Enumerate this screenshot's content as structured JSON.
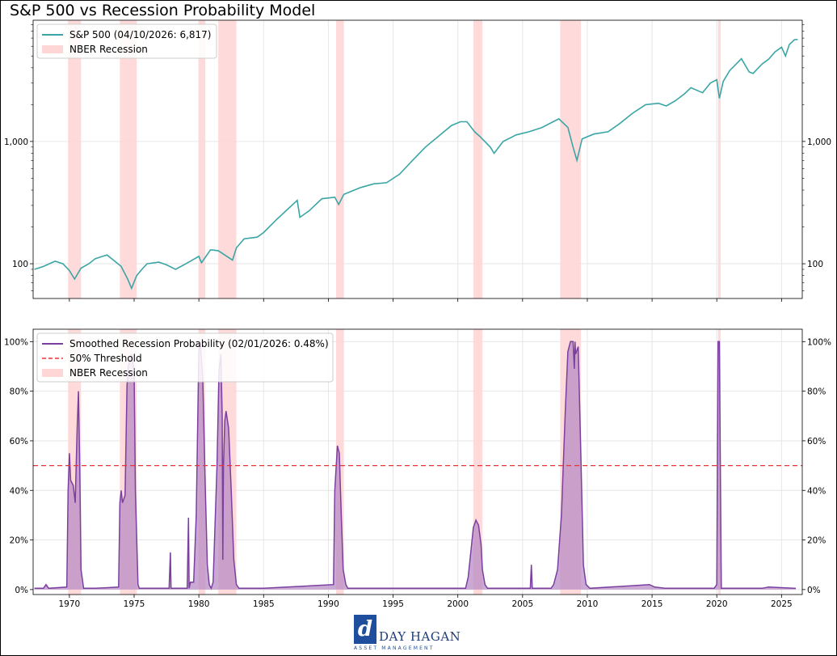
{
  "title": "S&P 500 vs Recession Probability Model",
  "brand": {
    "mark": "d",
    "name": "DAY HAGAN",
    "subtitle": "ASSET MANAGEMENT"
  },
  "colors": {
    "sp500": "#3ba5a5",
    "prob": "#7b3fa0",
    "prob_fill": "#b88cc6",
    "threshold": "#e8343a",
    "recession": "#ffd6d6"
  },
  "chart_data": [
    {
      "type": "line",
      "legend_position": "top-left",
      "grid": true,
      "y_scale": "log",
      "xlim": [
        1967.2,
        2026.6
      ],
      "ylim": [
        52,
        9800
      ],
      "y_ticks": [
        100,
        1000
      ],
      "y_tick_labels": [
        "100",
        "1,000"
      ],
      "legend": [
        "S&P 500 (04/10/2026: 6,817)",
        "NBER Recession"
      ],
      "recessions": [
        [
          1969.9,
          1970.9
        ],
        [
          1973.9,
          1975.2
        ],
        [
          1980.0,
          1980.5
        ],
        [
          1981.5,
          1982.9
        ],
        [
          1990.6,
          1991.2
        ],
        [
          2001.2,
          2001.9
        ],
        [
          2007.9,
          2009.5
        ],
        [
          2020.1,
          2020.3
        ]
      ],
      "series": [
        {
          "name": "S&P 500 (04/10/2026: 6,817)",
          "x": [
            1967.3,
            1968.0,
            1968.9,
            1969.5,
            1970.0,
            1970.4,
            1970.9,
            1971.5,
            1972.0,
            1972.9,
            1973.5,
            1974.0,
            1974.5,
            1974.8,
            1975.2,
            1975.6,
            1976.0,
            1976.9,
            1977.5,
            1978.2,
            1979.0,
            1980.0,
            1980.2,
            1980.9,
            1981.5,
            1982.6,
            1982.9,
            1983.5,
            1984.5,
            1985.0,
            1986.0,
            1987.6,
            1987.8,
            1988.5,
            1989.5,
            1990.5,
            1990.8,
            1991.2,
            1992.5,
            1993.5,
            1994.5,
            1995.5,
            1996.5,
            1997.5,
            1998.5,
            1999.5,
            2000.2,
            2000.7,
            2001.3,
            2001.7,
            2002.5,
            2002.8,
            2003.5,
            2004.5,
            2005.5,
            2006.5,
            2007.8,
            2008.5,
            2008.9,
            2009.2,
            2009.6,
            2010.5,
            2011.6,
            2012.5,
            2013.5,
            2014.5,
            2015.5,
            2016.1,
            2016.8,
            2017.5,
            2018.0,
            2018.9,
            2019.5,
            2020.0,
            2020.2,
            2020.5,
            2021.0,
            2021.9,
            2022.5,
            2022.8,
            2023.5,
            2024.0,
            2024.5,
            2025.0,
            2025.3,
            2025.6,
            2026.0,
            2026.25
          ],
          "y": [
            90,
            95,
            105,
            100,
            88,
            75,
            92,
            100,
            110,
            118,
            105,
            95,
            75,
            63,
            80,
            90,
            100,
            103,
            98,
            90,
            100,
            115,
            102,
            130,
            128,
            107,
            135,
            160,
            165,
            180,
            230,
            330,
            240,
            270,
            340,
            350,
            305,
            370,
            420,
            450,
            460,
            540,
            700,
            900,
            1100,
            1350,
            1450,
            1450,
            1200,
            1100,
            900,
            800,
            1000,
            1130,
            1200,
            1300,
            1530,
            1300,
            900,
            700,
            1050,
            1150,
            1200,
            1400,
            1700,
            2000,
            2050,
            1950,
            2150,
            2450,
            2750,
            2500,
            3000,
            3200,
            2250,
            3100,
            3800,
            4750,
            3700,
            3600,
            4300,
            4700,
            5400,
            5900,
            5000,
            6200,
            6800,
            6817
          ]
        }
      ]
    },
    {
      "type": "area",
      "legend_position": "top-left",
      "grid": true,
      "xlim": [
        1967.2,
        2026.6
      ],
      "ylim": [
        -2,
        105
      ],
      "x_ticks": [
        1970,
        1975,
        1980,
        1985,
        1990,
        1995,
        2000,
        2005,
        2010,
        2015,
        2020,
        2025
      ],
      "y_ticks": [
        0,
        20,
        40,
        60,
        80,
        100
      ],
      "y_tick_labels": [
        "0%",
        "20%",
        "40%",
        "60%",
        "80%",
        "100%"
      ],
      "threshold": 50,
      "legend": [
        "Smoothed Recession Probability (02/01/2026: 0.48%)",
        "50% Threshold",
        "NBER Recession"
      ],
      "recessions": [
        [
          1969.9,
          1970.9
        ],
        [
          1973.9,
          1975.2
        ],
        [
          1980.0,
          1980.5
        ],
        [
          1981.5,
          1982.9
        ],
        [
          1990.6,
          1991.2
        ],
        [
          2001.2,
          2001.9
        ],
        [
          2007.9,
          2009.5
        ],
        [
          2020.1,
          2020.3
        ]
      ],
      "series": [
        {
          "name": "Smoothed Recession Probability (02/01/2026: 0.48%)",
          "x": [
            1967.3,
            1968.0,
            1968.2,
            1968.4,
            1969.8,
            1969.9,
            1970.0,
            1970.1,
            1970.3,
            1970.45,
            1970.6,
            1970.7,
            1970.8,
            1970.9,
            1971.1,
            1972.0,
            1973.8,
            1973.9,
            1974.0,
            1974.1,
            1974.3,
            1974.45,
            1974.55,
            1974.8,
            1975.0,
            1975.1,
            1975.3,
            1975.4,
            1977.7,
            1977.8,
            1977.85,
            1979.1,
            1979.2,
            1979.25,
            1979.35,
            1979.6,
            1979.8,
            1980.0,
            1980.1,
            1980.3,
            1980.5,
            1980.65,
            1980.8,
            1980.95,
            1981.1,
            1981.4,
            1981.55,
            1981.7,
            1981.8,
            1981.85,
            1981.9,
            1982.0,
            1982.1,
            1982.3,
            1982.5,
            1982.7,
            1982.9,
            1983.1,
            1983.3,
            1985.0,
            1990.4,
            1990.5,
            1990.7,
            1990.85,
            1991.0,
            1991.15,
            1991.35,
            1991.5,
            2000.6,
            2000.8,
            2001.0,
            2001.2,
            2001.4,
            2001.6,
            2001.8,
            2001.9,
            2002.1,
            2002.3,
            2005.6,
            2005.68,
            2005.75,
            2007.2,
            2007.4,
            2007.7,
            2008.0,
            2008.3,
            2008.5,
            2008.7,
            2008.9,
            2009.0,
            2009.05,
            2009.1,
            2009.3,
            2009.5,
            2009.7,
            2009.9,
            2010.2,
            2014.8,
            2015.2,
            2016.0,
            2019.8,
            2020.0,
            2020.1,
            2020.2,
            2020.35,
            2020.5,
            2023.5,
            2024.0,
            2026.1
          ],
          "y": [
            0.5,
            0.5,
            2,
            0.5,
            1,
            40,
            55,
            44,
            42,
            35,
            65,
            80,
            50,
            8,
            0.5,
            0.5,
            1,
            35,
            40,
            35,
            38,
            82,
            90,
            95,
            88,
            40,
            2,
            0.5,
            0.5,
            15,
            0.5,
            0.5,
            29,
            0.5,
            3,
            3,
            30,
            96,
            100,
            85,
            40,
            10,
            2,
            0.5,
            3,
            50,
            88,
            95,
            70,
            12,
            50,
            68,
            72,
            65,
            40,
            12,
            2,
            0.5,
            0.5,
            0.5,
            2,
            40,
            58,
            55,
            30,
            8,
            2,
            0.5,
            0.5,
            5,
            15,
            25,
            28,
            26,
            18,
            8,
            2,
            0.5,
            0.5,
            10,
            0.5,
            0.5,
            2,
            8,
            30,
            72,
            96,
            100,
            100,
            89,
            100,
            95,
            98,
            55,
            10,
            2,
            0.5,
            2,
            1,
            0.5,
            0.5,
            2,
            100,
            100,
            0.5,
            0.5,
            0.5,
            1,
            0.48
          ]
        }
      ]
    }
  ]
}
